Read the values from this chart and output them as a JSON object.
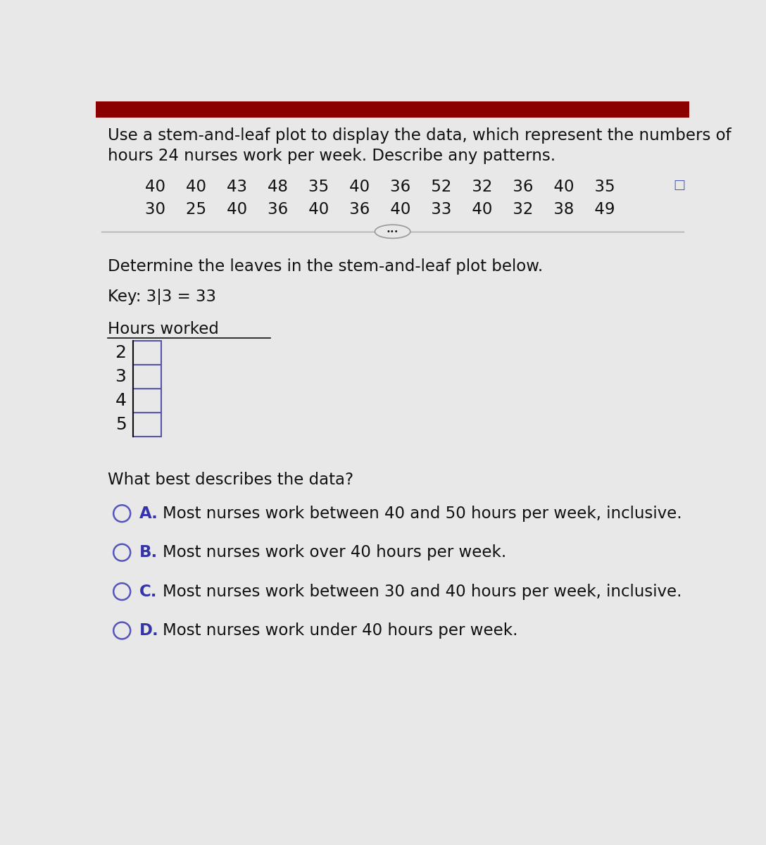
{
  "bg_color": "#dcdcdc",
  "white_bg": "#e8e8e8",
  "red_bar_color": "#8b0000",
  "title_text1": "Use a stem-and-leaf plot to display the data, which represent the numbers of",
  "title_text2": "hours 24 nurses work per week. Describe any patterns.",
  "data_row1": "40    40    43    48    35    40    36    52    32    36    40    35",
  "data_row2": "30    25    40    36    40    36    40    33    40    32    38    49",
  "section2_title": "Determine the leaves in the stem-and-leaf plot below.",
  "key_text": "Key: 3|3 = 33",
  "plot_title": "Hours worked",
  "stems": [
    "2",
    "3",
    "4",
    "5"
  ],
  "mc_question": "What best describes the data?",
  "choices": [
    {
      "label": "A.",
      "text": "Most nurses work between 40 and 50 hours per week, inclusive."
    },
    {
      "label": "B.",
      "text": "Most nurses work over 40 hours per week."
    },
    {
      "label": "C.",
      "text": "Most nurses work between 30 and 40 hours per week, inclusive."
    },
    {
      "label": "D.",
      "text": "Most nurses work under 40 hours per week."
    }
  ],
  "font_color": "#111111",
  "box_bg": "#e0e0e8",
  "box_edge_color": "#5555aa",
  "stem_line_color": "#111111",
  "circle_color": "#5555bb",
  "label_color": "#3333aa",
  "title_fontsize": 16.5,
  "body_fontsize": 16.5,
  "stem_fontsize": 18,
  "mc_fontsize": 16.5,
  "choice_fontsize": 16.5
}
